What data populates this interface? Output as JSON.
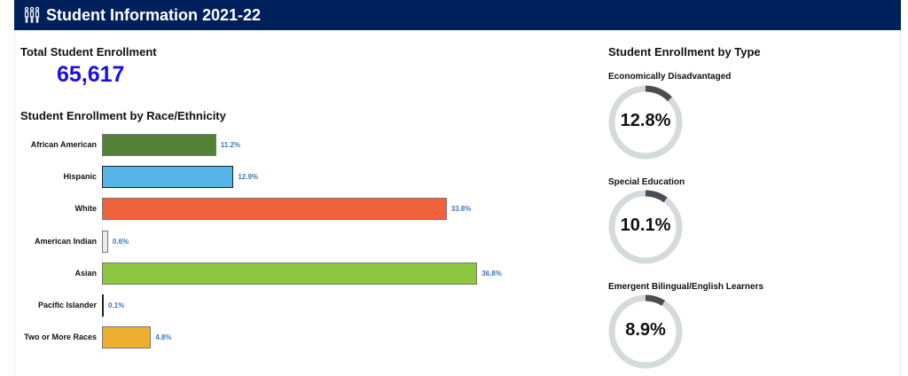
{
  "header": {
    "title": "Student Information 2021-22",
    "icon": "people-group-icon"
  },
  "total": {
    "label": "Total Student Enrollment",
    "value": "65,617"
  },
  "race": {
    "title": "Student Enrollment by Race/Ethnicity"
  },
  "types": {
    "title": "Student Enrollment by Type",
    "items": [
      {
        "label": "Economically Disadvantaged",
        "value": 12.8,
        "display": "12.8%"
      },
      {
        "label": "Special Education",
        "value": 10.1,
        "display": "10.1%"
      },
      {
        "label": "Emergent Bilingual/English Learners",
        "value": 8.9,
        "display": "8.9%"
      }
    ],
    "colors": {
      "track": "#d5dbdb",
      "fill": "#4a4d52"
    }
  },
  "chart_data": {
    "type": "bar",
    "orientation": "horizontal",
    "title": "Student Enrollment by Race/Ethnicity",
    "categories": [
      "African American",
      "Hispanic",
      "White",
      "American Indian",
      "Asian",
      "Pacific Islander",
      "Two or More Races"
    ],
    "values": [
      11.2,
      12.9,
      33.8,
      0.6,
      36.8,
      0.1,
      4.8
    ],
    "labels": [
      "11.2%",
      "12.9%",
      "33.8%",
      "0.6%",
      "36.8%",
      "0.1%",
      "4.8%"
    ],
    "colors": [
      "#538135",
      "#56b4e9",
      "#f0623a",
      "#eeeae6",
      "#8dc63f",
      "#5a3e6b",
      "#eeaf30"
    ],
    "unit": "%",
    "xlim": [
      0,
      40
    ],
    "grid": false,
    "legend": "none"
  }
}
